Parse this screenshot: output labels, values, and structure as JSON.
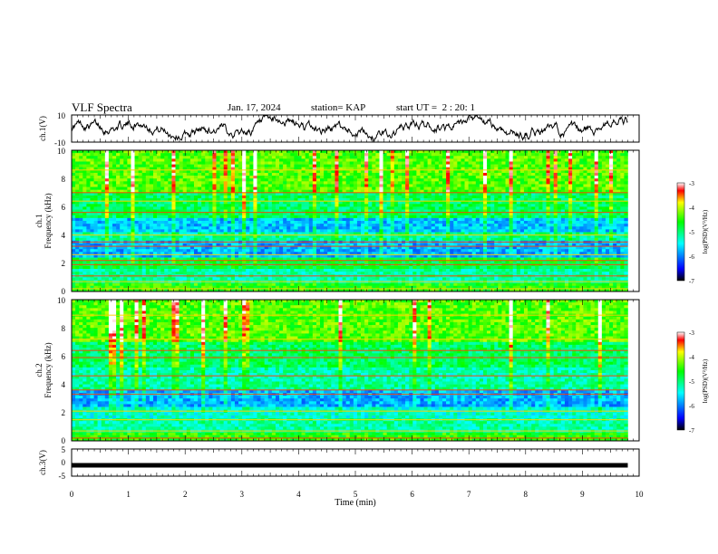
{
  "header": {
    "title": "VLF Spectra",
    "date": "Jan. 17, 2024",
    "station": "station= KAP",
    "start": "start UT =  2 : 20: 1"
  },
  "chart_data": [
    {
      "type": "line",
      "id": "ch1-waveform",
      "ylabel": "ch.1(V)",
      "ylim": [
        -10,
        10
      ],
      "yticks": [
        "10",
        "-10"
      ],
      "xlim": [
        0,
        10
      ],
      "trace_range_min": [
        0,
        9.8
      ]
    },
    {
      "type": "heatmap",
      "id": "ch1-spectrogram",
      "ylabel_line1": "ch.1",
      "ylabel_line2": "Frequency (kHz)",
      "ylim": [
        0,
        10
      ],
      "yticks": [
        "0",
        "2",
        "4",
        "6",
        "8",
        "10"
      ],
      "xlim": [
        0,
        10
      ],
      "colorbar": {
        "label": "log(PSD)(V²/Hz)",
        "range": [
          -7,
          -3
        ],
        "ticks": [
          "-3",
          "-4",
          "-5",
          "-6",
          "-7"
        ]
      }
    },
    {
      "type": "heatmap",
      "id": "ch2-spectrogram",
      "ylabel_line1": "ch.2",
      "ylabel_line2": "Frequency (kHz)",
      "ylim": [
        0,
        10
      ],
      "yticks": [
        "0",
        "2",
        "4",
        "6",
        "8",
        "10"
      ],
      "xlim": [
        0,
        10
      ],
      "colorbar": {
        "label": "log(PSD)(V²/Hz)",
        "range": [
          -7,
          -3
        ],
        "ticks": [
          "-3",
          "-4",
          "-5",
          "-6",
          "-7"
        ]
      }
    },
    {
      "type": "line",
      "id": "ch3-waveform",
      "ylabel": "ch.3(V)",
      "ylim": [
        -5,
        5
      ],
      "yticks": [
        "5",
        "0",
        "-5"
      ],
      "xlim": [
        0,
        10
      ],
      "level": -1.0
    }
  ],
  "xaxis": {
    "label": "Time (min)",
    "ticks": [
      "0",
      "1",
      "2",
      "3",
      "4",
      "5",
      "6",
      "7",
      "8",
      "9",
      "10"
    ]
  }
}
